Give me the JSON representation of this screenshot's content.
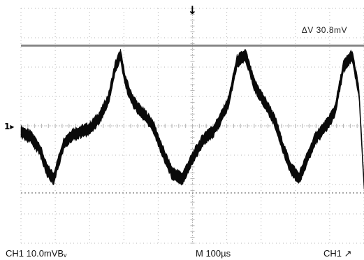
{
  "scope": {
    "timebase_divisions": 10,
    "vertical_divisions": 8,
    "colors": {
      "trace": "#0a0a0a",
      "cursor": "#888888",
      "grid": "#b5b5b5",
      "background": "#ffffff"
    }
  },
  "cursor_readout": {
    "label": "ΔV 30.8mV"
  },
  "channel_marker": {
    "label": "1▸"
  },
  "trigger_marker": {
    "glyph": "↓"
  },
  "status_bar": {
    "channel_scale": "CH1  10.0mVBᵥ",
    "timebase": "M 100µs",
    "trigger": "CH1 ↗"
  },
  "chart_data": {
    "type": "line",
    "title": "",
    "xlabel": "",
    "ylabel": "",
    "x_unit": "µs",
    "y_unit": "mV",
    "xlim": [
      0,
      1000
    ],
    "ylim": [
      -40,
      40
    ],
    "grid": true,
    "series": [
      {
        "name": "",
        "x": [
          0,
          30,
          55,
          75,
          95,
          110,
          125,
          150,
          175,
          200,
          230,
          255,
          275,
          290,
          305,
          320,
          340,
          365,
          385,
          410,
          440,
          470,
          505,
          530,
          545,
          560,
          580,
          605,
          630,
          655,
          680,
          710,
          730,
          745,
          760,
          785,
          810,
          835,
          860,
          890,
          915,
          940,
          965,
          985,
          1000
        ],
        "y": [
          -2,
          -4,
          -8,
          -15,
          -18,
          -12,
          -6,
          -3,
          -2,
          -1,
          3,
          9,
          20,
          24,
          15,
          10,
          6,
          3,
          0,
          -8,
          -16,
          -18,
          -10,
          -5,
          -3,
          -2,
          2,
          8,
          22,
          24,
          14,
          8,
          4,
          0,
          -6,
          -14,
          -18,
          -11,
          -4,
          0,
          5,
          20,
          24,
          12,
          -20
        ]
      }
    ],
    "cursors": {
      "delta_v_mV": 30.8
    }
  }
}
